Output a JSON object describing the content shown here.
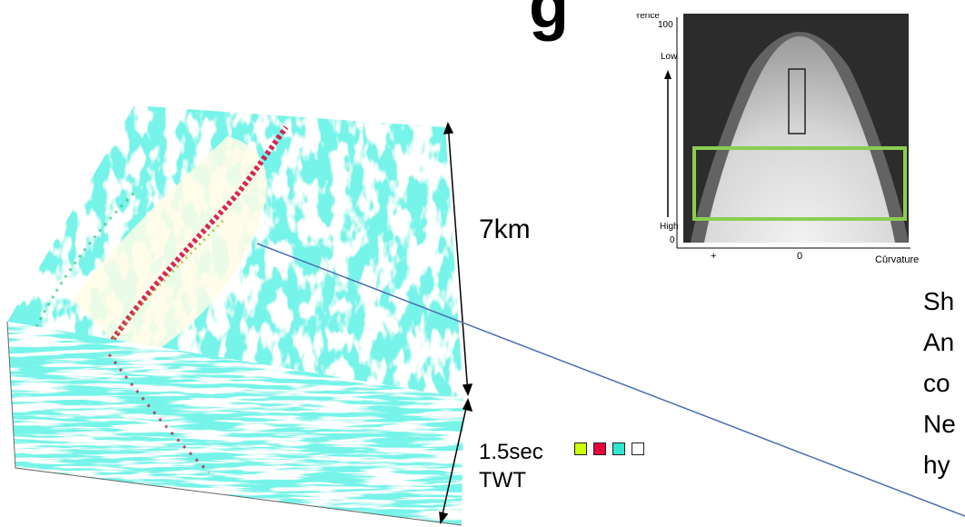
{
  "title_fragment": "g",
  "cube": {
    "scale_horizontal": "7km",
    "scale_time": "1.5sec",
    "scale_time_unit": "TWT"
  },
  "legend_swatches": [
    {
      "color": "#ccff00"
    },
    {
      "color": "#e8003a"
    },
    {
      "color": "#2ee6cf"
    },
    {
      "color": "#ffffff"
    }
  ],
  "cross_plot": {
    "y_title": "Coherence",
    "y_max": "100",
    "y_low": "Low",
    "y_high": "High",
    "y_min": "0",
    "x_plus": "+",
    "x_zero": "0",
    "x_minus": "-",
    "x_title": "Curvature",
    "highlight_color": "#8ccd50"
  },
  "side_text_lines": [
    "Sh",
    "An",
    "co",
    "Ne",
    "hy"
  ]
}
